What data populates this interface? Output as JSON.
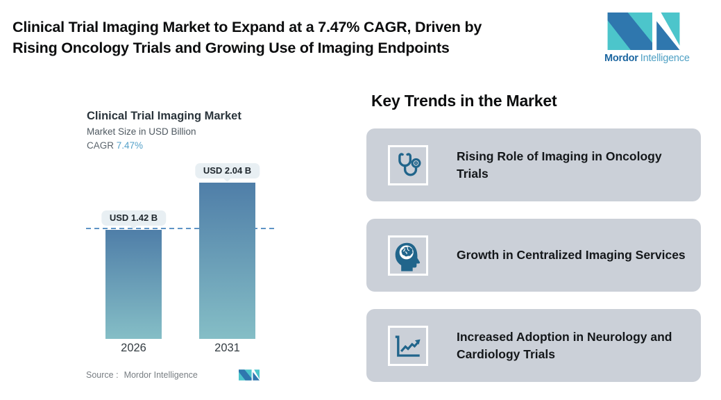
{
  "header": {
    "title_line1": "Clinical Trial Imaging Market to Expand at a 7.47% CAGR, Driven by",
    "title_line2": "Rising Oncology Trials and Growing Use of Imaging Endpoints",
    "brand": {
      "bold": "Mordor",
      "light": "Intelligence"
    }
  },
  "chart": {
    "source_label": "Source :",
    "source_value": "Mordor Intelligence"
  },
  "chart_data": {
    "type": "bar",
    "title": "Clinical Trial Imaging Market",
    "subtitle": "Market Size in USD Billion",
    "cagr_label": "CAGR",
    "cagr_value": "7.47%",
    "categories": [
      "2026",
      "2031"
    ],
    "values": [
      1.42,
      2.04
    ],
    "value_labels": [
      "USD 1.42 B",
      "USD 2.04 B"
    ],
    "unit": "USD Billion",
    "ylim": [
      0,
      2.04
    ],
    "grid": false,
    "legend": false,
    "reference_line": {
      "value": 1.42,
      "style": "dashed"
    },
    "bar_color_top": "#4F7EA8",
    "bar_color_bottom": "#85BEC6",
    "source": "Mordor Intelligence"
  },
  "trends": {
    "heading": "Key Trends in the Market",
    "cards": [
      {
        "icon": "stethoscope-icon",
        "text": "Rising Role of Imaging in Oncology Trials"
      },
      {
        "icon": "head-brain-icon",
        "text": "Growth in Centralized Imaging Services"
      },
      {
        "icon": "trend-chart-icon",
        "text": "Increased Adoption in Neurology and Cardiology Trials"
      }
    ]
  },
  "colors": {
    "brand_teal": "#4CC5CB",
    "brand_blue": "#2F77AE",
    "card_background": "#CBD0D8",
    "icon_blue": "#21658B",
    "dashed_line": "#5E94C6",
    "value_pill_background": "#E8EFF3",
    "cagr_value_blue": "#55A1C9"
  }
}
